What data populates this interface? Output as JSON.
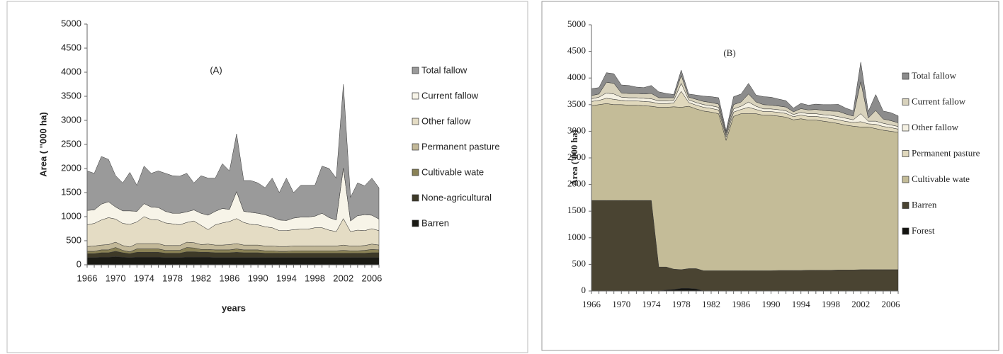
{
  "chart_data": [
    {
      "type": "stacked-area",
      "title": "(A)",
      "ylabel": "Area ( ''000 ha)",
      "xlabel": "years",
      "categories": [
        "1966",
        null,
        null,
        null,
        "1970",
        null,
        null,
        null,
        "1974",
        null,
        null,
        null,
        "1978",
        null,
        null,
        null,
        "1982",
        null,
        null,
        null,
        "1986",
        null,
        null,
        null,
        "1990",
        null,
        null,
        null,
        "1994",
        null,
        null,
        null,
        "1998",
        null,
        null,
        null,
        "2002",
        null,
        null,
        null,
        "2006",
        null
      ],
      "ylim": [
        0,
        5000
      ],
      "yticks": [
        0,
        500,
        1000,
        1500,
        2000,
        2500,
        3000,
        3500,
        4000,
        4500,
        5000
      ],
      "series": [
        {
          "name": "Barren",
          "color": "#1a1a14",
          "values": [
            150,
            150,
            160,
            160,
            170,
            160,
            150,
            160,
            160,
            160,
            160,
            150,
            150,
            150,
            160,
            160,
            160,
            160,
            150,
            150,
            150,
            150,
            150,
            150,
            150,
            150,
            150,
            150,
            150,
            150,
            150,
            150,
            150,
            150,
            150,
            150,
            150,
            150,
            150,
            150,
            150,
            150
          ]
        },
        {
          "name": "None-agricultural",
          "color": "#3e3a28",
          "values": [
            80,
            80,
            90,
            90,
            110,
            90,
            80,
            100,
            100,
            100,
            100,
            90,
            90,
            90,
            110,
            110,
            100,
            100,
            100,
            100,
            100,
            110,
            100,
            100,
            100,
            90,
            90,
            90,
            90,
            90,
            90,
            90,
            90,
            90,
            90,
            90,
            90,
            90,
            90,
            90,
            100,
            100
          ]
        },
        {
          "name": "Cultivable wate",
          "color": "#8a8256",
          "values": [
            50,
            50,
            60,
            60,
            80,
            50,
            40,
            70,
            70,
            70,
            70,
            60,
            60,
            60,
            90,
            80,
            60,
            60,
            60,
            60,
            60,
            70,
            60,
            60,
            60,
            50,
            50,
            40,
            40,
            50,
            50,
            50,
            50,
            50,
            50,
            50,
            60,
            50,
            50,
            60,
            70,
            60
          ]
        },
        {
          "name": "Permanent pasture",
          "color": "#c2b898",
          "values": [
            100,
            110,
            100,
            110,
            110,
            100,
            100,
            110,
            110,
            110,
            110,
            100,
            100,
            100,
            110,
            110,
            100,
            110,
            100,
            100,
            110,
            110,
            100,
            100,
            100,
            100,
            100,
            100,
            100,
            100,
            100,
            100,
            100,
            100,
            100,
            100,
            110,
            100,
            100,
            100,
            110,
            100
          ]
        },
        {
          "name": "Other fallow",
          "color": "#e4dcc4",
          "values": [
            450,
            470,
            520,
            560,
            480,
            460,
            470,
            450,
            560,
            500,
            490,
            470,
            450,
            430,
            410,
            450,
            400,
            300,
            420,
            460,
            480,
            520,
            470,
            430,
            420,
            400,
            380,
            330,
            330,
            340,
            350,
            350,
            380,
            380,
            330,
            300,
            550,
            300,
            330,
            310,
            320,
            300
          ]
        },
        {
          "name": "Current fallow",
          "color": "#f7f4e8",
          "values": [
            300,
            280,
            330,
            330,
            250,
            260,
            280,
            220,
            270,
            260,
            260,
            240,
            220,
            240,
            220,
            230,
            250,
            300,
            280,
            300,
            250,
            560,
            230,
            250,
            240,
            250,
            220,
            220,
            210,
            240,
            250,
            250,
            240,
            300,
            260,
            240,
            1050,
            220,
            300,
            330,
            280,
            240
          ]
        },
        {
          "name": "Total fallow",
          "color": "#9a9a9a",
          "values": [
            820,
            760,
            990,
            880,
            650,
            580,
            800,
            540,
            780,
            700,
            760,
            790,
            780,
            770,
            800,
            560,
            780,
            770,
            690,
            930,
            800,
            1200,
            640,
            660,
            630,
            560,
            810,
            570,
            880,
            530,
            660,
            660,
            640,
            980,
            1020,
            870,
            1740,
            490,
            680,
            600,
            770,
            650
          ]
        }
      ]
    },
    {
      "type": "stacked-area",
      "title": "(B)",
      "ylabel": "Area ('000 ha)",
      "categories": [
        "1966",
        null,
        null,
        null,
        "1970",
        null,
        null,
        null,
        "1974",
        null,
        null,
        null,
        "1978",
        null,
        null,
        null,
        "1982",
        null,
        null,
        null,
        "1986",
        null,
        null,
        null,
        "1990",
        null,
        null,
        null,
        "1994",
        null,
        null,
        null,
        "1998",
        null,
        null,
        null,
        "2002",
        null,
        null,
        null,
        "2006",
        null
      ],
      "ylim": [
        0,
        5000
      ],
      "yticks": [
        0,
        500,
        1000,
        1500,
        2000,
        2500,
        3000,
        3500,
        4000,
        4500,
        5000
      ],
      "series": [
        {
          "name": "Forest",
          "color": "#141410",
          "values": [
            0,
            0,
            0,
            0,
            0,
            0,
            0,
            0,
            0,
            0,
            20,
            30,
            50,
            50,
            40,
            0,
            0,
            0,
            0,
            0,
            0,
            0,
            0,
            0,
            0,
            0,
            0,
            0,
            0,
            0,
            0,
            0,
            0,
            0,
            0,
            0,
            0,
            0,
            0,
            0,
            0,
            0
          ]
        },
        {
          "name": "Barren",
          "color": "#4a4432",
          "values": [
            1700,
            1700,
            1700,
            1700,
            1700,
            1700,
            1700,
            1700,
            1700,
            450,
            430,
            380,
            350,
            370,
            380,
            380,
            380,
            380,
            380,
            380,
            380,
            380,
            380,
            380,
            380,
            385,
            385,
            385,
            385,
            390,
            390,
            390,
            390,
            395,
            395,
            395,
            400,
            400,
            400,
            400,
            400,
            400
          ]
        },
        {
          "name": "Cultivable wate",
          "color": "#c4bc98",
          "values": [
            1780,
            1800,
            1820,
            1800,
            1800,
            1790,
            1790,
            1780,
            1770,
            3000,
            3000,
            3050,
            3050,
            3050,
            3000,
            3000,
            2980,
            2950,
            2450,
            2900,
            2950,
            2950,
            2950,
            2920,
            2920,
            2900,
            2880,
            2830,
            2850,
            2820,
            2820,
            2800,
            2780,
            2750,
            2720,
            2700,
            2680,
            2680,
            2650,
            2620,
            2600,
            2580
          ]
        },
        {
          "name": "Permanent pasture",
          "color": "#e0d8bc",
          "values": [
            80,
            80,
            100,
            100,
            80,
            80,
            80,
            80,
            80,
            70,
            70,
            70,
            300,
            70,
            70,
            70,
            70,
            70,
            60,
            80,
            80,
            120,
            80,
            70,
            70,
            70,
            70,
            60,
            70,
            70,
            70,
            70,
            70,
            70,
            70,
            70,
            100,
            60,
            80,
            70,
            70,
            60
          ]
        },
        {
          "name": "Other fallow",
          "color": "#f4f0e2",
          "values": [
            50,
            60,
            100,
            100,
            60,
            60,
            60,
            60,
            60,
            50,
            50,
            50,
            150,
            50,
            50,
            50,
            50,
            50,
            40,
            60,
            60,
            100,
            60,
            50,
            50,
            50,
            50,
            40,
            50,
            50,
            50,
            50,
            60,
            60,
            60,
            50,
            150,
            50,
            60,
            60,
            50,
            50
          ]
        },
        {
          "name": "Current fallow",
          "color": "#d8d2bc",
          "values": [
            60,
            60,
            200,
            200,
            80,
            80,
            80,
            80,
            100,
            60,
            60,
            50,
            150,
            50,
            60,
            60,
            60,
            60,
            40,
            80,
            80,
            150,
            80,
            80,
            70,
            70,
            70,
            50,
            70,
            70,
            80,
            80,
            80,
            100,
            80,
            70,
            600,
            60,
            200,
            80,
            80,
            70
          ]
        },
        {
          "name": "Total fallow",
          "color": "#8c8c8c",
          "values": [
            130,
            120,
            180,
            180,
            150,
            150,
            120,
            120,
            150,
            110,
            80,
            60,
            100,
            60,
            80,
            100,
            110,
            120,
            40,
            150,
            150,
            200,
            130,
            150,
            150,
            130,
            120,
            70,
            100,
            90,
            100,
            110,
            120,
            130,
            110,
            100,
            370,
            120,
            300,
            150,
            150,
            130
          ]
        }
      ]
    }
  ]
}
